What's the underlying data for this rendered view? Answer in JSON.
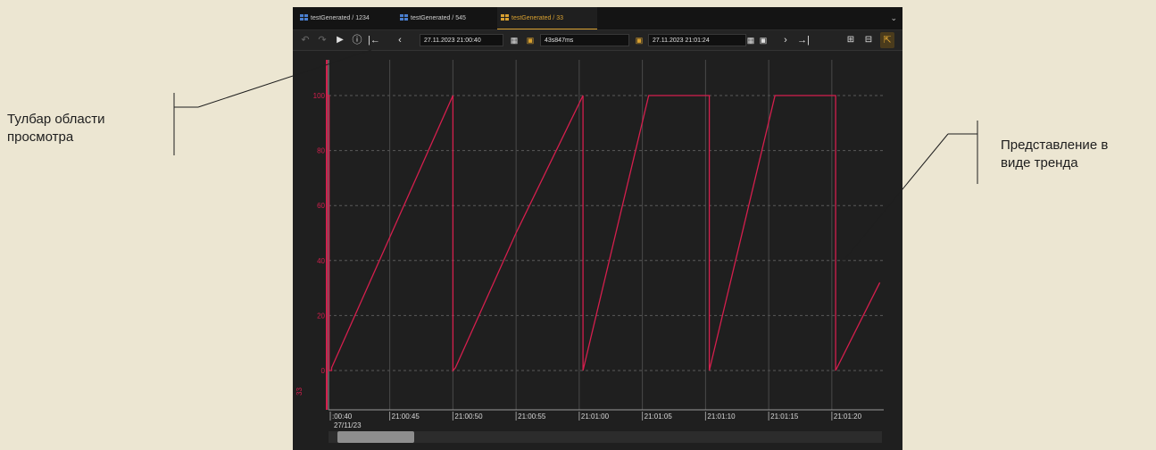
{
  "callouts": {
    "left": [
      "Тулбар области",
      "просмотра"
    ],
    "right": [
      "Представление в",
      "виде тренда"
    ]
  },
  "tabs": [
    {
      "label": "testGenerated / 1234",
      "active": false
    },
    {
      "label": "testGenerated / 545",
      "active": false
    },
    {
      "label": "testGenerated / 33",
      "active": true
    }
  ],
  "tab_menu_icon": "chevron-down",
  "toolbar": {
    "undo_icon": "undo",
    "redo_icon": "redo",
    "play_icon": "play",
    "help_icon": "help-circle",
    "first_icon": "jump-to-start",
    "prev_icon": "chevron-left",
    "start_time": "27.11.2023 21:00:40",
    "calendar_icon": "calendar",
    "lock_open_icon": "unlock",
    "duration": "43s847ms",
    "end_time": "27.11.2023 21:01:24",
    "lock_closed_icon": "lock",
    "next_icon": "chevron-right",
    "last_icon": "jump-to-end",
    "view_icons": [
      "table-view",
      "split-view",
      "trend-view"
    ]
  },
  "colors": {
    "series": "#d41f4d",
    "accent": "#d8a030",
    "background": "#1f1f1f"
  },
  "chart_data": {
    "type": "line",
    "series_label": "33",
    "ylim": [
      0,
      100
    ],
    "y_ticks": [
      0,
      20,
      40,
      60,
      80,
      100
    ],
    "x_ticks": [
      ":00:40",
      "21:00:45",
      "21:00:50",
      "21:00:55",
      "21:01:00",
      "21:01:05",
      "21:01:10",
      "21:01:15",
      "21:01:20"
    ],
    "date_label": "27/11/23",
    "grid": true,
    "series": [
      {
        "x": [
          "21:00:40",
          "21:00:40.2",
          "21:00:40.2",
          "21:00:40.4",
          "21:00:40.4",
          "21:00:50",
          "21:00:50",
          "21:00:50.2",
          "21:00:55",
          "21:01:00.3",
          "21:01:00.3",
          "21:01:05.5",
          "21:01:10.3",
          "21:01:10.3",
          "21:01:15.5",
          "21:01:20.3",
          "21:01:20.3",
          "21:01:23.8"
        ],
        "y": [
          100,
          100,
          0,
          0,
          1,
          100,
          0,
          1,
          50,
          100,
          0,
          100,
          100,
          0,
          100,
          100,
          0,
          32
        ]
      }
    ]
  }
}
